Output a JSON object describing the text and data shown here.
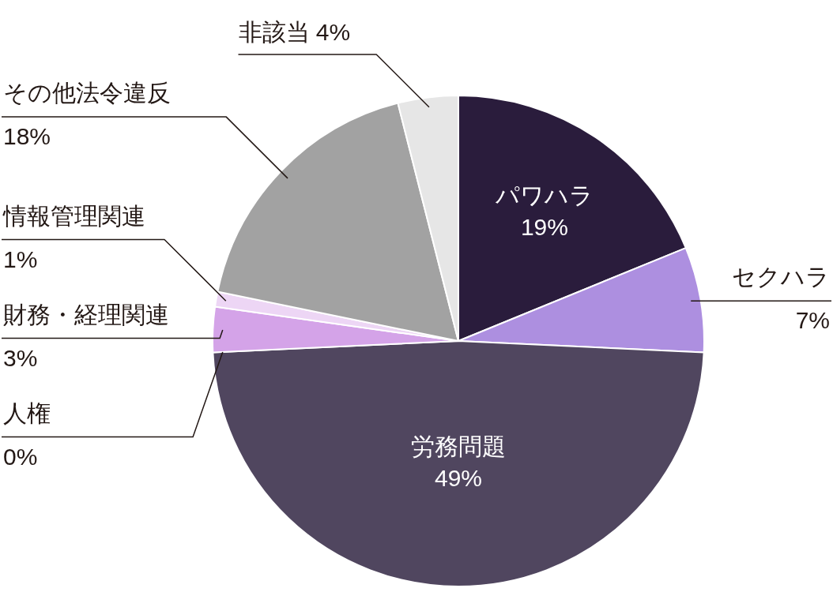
{
  "chart_data": {
    "type": "pie",
    "categories": [
      "パワハラ",
      "セクハラ",
      "労務問題",
      "人権",
      "財務・経理関連",
      "情報管理関連",
      "その他法令違反",
      "非該当"
    ],
    "values": [
      19,
      7,
      49,
      0,
      3,
      1,
      18,
      4
    ],
    "value_labels": [
      "19%",
      "7%",
      "49%",
      "0%",
      "3%",
      "1%",
      "18%",
      "4%"
    ],
    "colors": [
      "#2a1c3c",
      "#ad8fe0",
      "#50465f",
      "#c8b4e4",
      "#d4a3e8",
      "#edd6f5",
      "#a2a2a2",
      "#e6e6e6"
    ]
  }
}
